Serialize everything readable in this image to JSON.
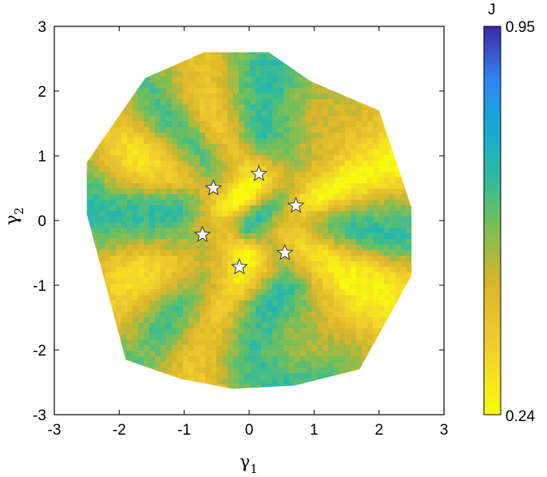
{
  "chart_data": {
    "type": "heatmap",
    "title": "",
    "xlabel": "γ",
    "xlabel_sub": "1",
    "ylabel": "γ",
    "ylabel_sub": "2",
    "xlim": [
      -3,
      3
    ],
    "ylim": [
      -3,
      3
    ],
    "xticks": [
      "-3",
      "-2",
      "-1",
      "0",
      "1",
      "2",
      "3"
    ],
    "yticks": [
      "-3",
      "-2",
      "-1",
      "0",
      "1",
      "2",
      "3"
    ],
    "grid": false,
    "region_vertices": [
      [
        -2.5,
        0.9
      ],
      [
        -1.6,
        2.2
      ],
      [
        -0.7,
        2.6
      ],
      [
        0.3,
        2.6
      ],
      [
        0.95,
        2.15
      ],
      [
        2.0,
        1.7
      ],
      [
        2.5,
        0.2
      ],
      [
        2.5,
        -0.85
      ],
      [
        1.7,
        -2.3
      ],
      [
        0.7,
        -2.55
      ],
      [
        -0.25,
        -2.6
      ],
      [
        -1.05,
        -2.45
      ],
      [
        -1.9,
        -2.15
      ],
      [
        -2.5,
        0.1
      ]
    ],
    "markers": [
      {
        "x": 0.15,
        "y": 0.72
      },
      {
        "x": -0.55,
        "y": 0.5
      },
      {
        "x": 0.72,
        "y": 0.23
      },
      {
        "x": -0.72,
        "y": -0.22
      },
      {
        "x": 0.55,
        "y": -0.5
      },
      {
        "x": -0.15,
        "y": -0.72
      }
    ],
    "colorbar": {
      "label": "J",
      "min": 0.24,
      "max": 0.95,
      "min_label": "0.24",
      "max_label": "0.95",
      "colormap": "parula"
    }
  }
}
